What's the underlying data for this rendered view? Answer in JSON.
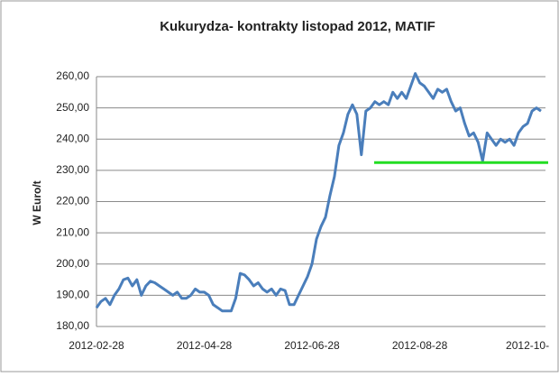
{
  "chart_data": {
    "type": "line",
    "title": "Kukurydza- kontrakty listopad 2012, MATIF",
    "y_label": "W Euro/t",
    "categories": [
      "2012-02-28",
      null,
      null,
      null,
      null,
      null,
      null,
      null,
      null,
      null,
      null,
      null,
      null,
      null,
      null,
      null,
      null,
      null,
      null,
      null,
      null,
      null,
      null,
      null,
      "2012-04-28",
      null,
      null,
      null,
      null,
      null,
      null,
      null,
      null,
      null,
      null,
      null,
      null,
      null,
      null,
      null,
      null,
      null,
      null,
      null,
      null,
      null,
      null,
      null,
      "2012-06-28",
      null,
      null,
      null,
      null,
      null,
      null,
      null,
      null,
      null,
      null,
      null,
      null,
      null,
      null,
      null,
      null,
      null,
      null,
      null,
      null,
      null,
      null,
      null,
      "2012-08-28",
      null,
      null,
      null,
      null,
      null,
      null,
      null,
      null,
      null,
      null,
      null,
      null,
      null,
      null,
      null,
      null,
      null,
      null,
      null,
      null,
      null,
      null,
      null,
      "2012-10-",
      null,
      null,
      null
    ],
    "values": [
      186,
      188,
      189,
      187,
      190,
      192,
      195,
      195.5,
      193,
      195,
      190,
      193,
      194.5,
      194,
      193,
      192,
      191,
      190,
      191,
      189,
      189,
      190,
      192,
      191,
      191,
      190,
      187,
      186,
      185,
      185,
      185,
      189,
      197,
      196.5,
      195,
      193,
      194,
      192,
      191,
      192,
      190,
      192,
      191.5,
      187,
      187,
      190,
      193,
      196,
      200,
      208,
      212,
      215,
      222,
      228,
      238,
      242,
      248,
      251,
      248,
      235,
      249,
      250,
      252,
      251,
      252,
      251,
      255,
      253,
      255,
      253,
      257,
      261,
      258,
      257,
      255,
      253,
      256,
      255,
      256,
      252,
      249,
      250,
      245,
      241,
      242,
      239,
      233,
      242,
      240,
      238,
      240,
      239,
      240,
      238,
      242,
      244,
      245,
      249,
      250,
      249
    ],
    "color": "#4a7ebb",
    "reference_line": {
      "value": 232.5,
      "color": "#22dd22"
    },
    "ylim": [
      180,
      260
    ],
    "yticks": [
      {
        "value": 180,
        "label": "180,00"
      },
      {
        "value": 190,
        "label": "190,00"
      },
      {
        "value": 200,
        "label": "200,00"
      },
      {
        "value": 210,
        "label": "210,00"
      },
      {
        "value": 220,
        "label": "220,00"
      },
      {
        "value": 230,
        "label": "230,00"
      },
      {
        "value": 240,
        "label": "240,00"
      },
      {
        "value": 250,
        "label": "250,00"
      },
      {
        "value": 260,
        "label": "260,00"
      }
    ],
    "grid": true
  }
}
